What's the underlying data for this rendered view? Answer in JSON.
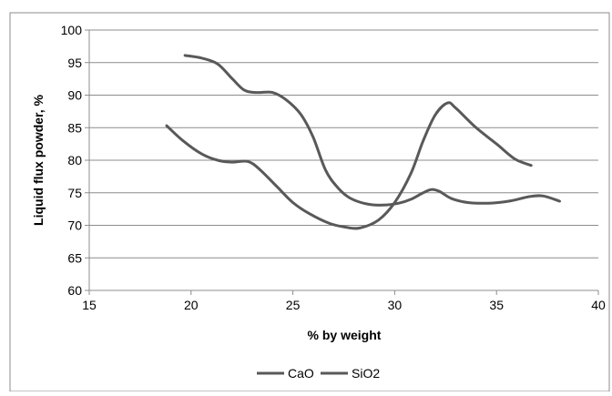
{
  "chart_data": {
    "type": "line",
    "xlabel": "% by weight",
    "ylabel": "Liquid flux powder, %",
    "xlim": [
      15,
      40
    ],
    "ylim": [
      60,
      100
    ],
    "x_ticks": [
      15,
      20,
      25,
      30,
      35,
      40
    ],
    "y_ticks": [
      60,
      65,
      70,
      75,
      80,
      85,
      90,
      95,
      100
    ],
    "x_tick_labels": [
      "15",
      "20",
      "25",
      "30",
      "35",
      "40"
    ],
    "y_tick_labels": [
      "60",
      "65",
      "70",
      "75",
      "80",
      "85",
      "90",
      "95",
      "100"
    ],
    "grid": "horizontal",
    "legend_position": "bottom",
    "series": [
      {
        "name": "CaO",
        "color": "#595959",
        "x": [
          18.8,
          19.6,
          20.5,
          21.3,
          22.0,
          22.8,
          23.4,
          24.2,
          25.0,
          25.8,
          26.8,
          27.6,
          28.3,
          29.2,
          30.0,
          30.8,
          31.4,
          32.0,
          32.6,
          33.0,
          34.0,
          35.0,
          35.9,
          36.7
        ],
        "y": [
          85.3,
          83.0,
          81.0,
          80.0,
          79.7,
          79.8,
          78.5,
          76.0,
          73.5,
          71.8,
          70.3,
          69.7,
          69.6,
          70.8,
          73.5,
          78.0,
          83.0,
          87.0,
          88.8,
          88.0,
          85.0,
          82.5,
          80.2,
          79.2
        ]
      },
      {
        "name": "SiO2",
        "color": "#595959",
        "x": [
          19.7,
          20.5,
          21.3,
          22.0,
          22.6,
          23.2,
          24.0,
          24.7,
          25.4,
          26.0,
          26.6,
          27.2,
          27.8,
          28.6,
          29.4,
          30.2,
          30.8,
          31.4,
          31.8,
          32.2,
          32.8,
          33.6,
          34.6,
          35.6,
          36.6,
          37.3,
          38.1
        ],
        "y": [
          96.1,
          95.7,
          94.8,
          92.6,
          90.8,
          90.4,
          90.4,
          89.2,
          87.0,
          83.5,
          78.5,
          75.8,
          74.2,
          73.3,
          73.1,
          73.4,
          74.0,
          75.0,
          75.5,
          75.2,
          74.1,
          73.5,
          73.4,
          73.7,
          74.4,
          74.5,
          73.7
        ]
      }
    ]
  }
}
